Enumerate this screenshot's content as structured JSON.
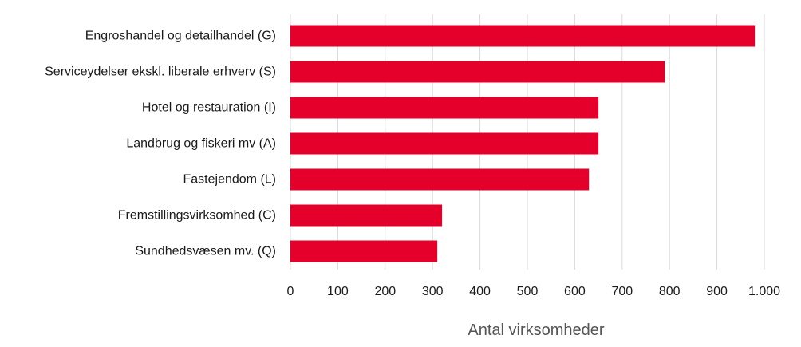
{
  "chart_data": {
    "type": "bar",
    "orientation": "horizontal",
    "categories": [
      "Engroshandel og detailhandel (G)",
      "Serviceydelser ekskl. liberale erhverv (S)",
      "Hotel og restauration (I)",
      "Landbrug og fiskeri mv (A)",
      "Fastejendom (L)",
      "Fremstillingsvirksomhed (C)",
      "Sundhedsvæsen mv. (Q)"
    ],
    "values": [
      980,
      790,
      650,
      650,
      630,
      320,
      310
    ],
    "xlabel": "Antal virksomheder",
    "ylabel": "",
    "xlim": [
      0,
      1000
    ],
    "xticks": [
      0,
      100,
      200,
      300,
      400,
      500,
      600,
      700,
      800,
      900,
      1000
    ],
    "xtick_labels": [
      "0",
      "100",
      "200",
      "300",
      "400",
      "500",
      "600",
      "700",
      "800",
      "900",
      "1.000"
    ],
    "grid": "vertical",
    "bar_color": "#e4002b",
    "grid_color": "#d9d9d9",
    "legend": "none"
  }
}
